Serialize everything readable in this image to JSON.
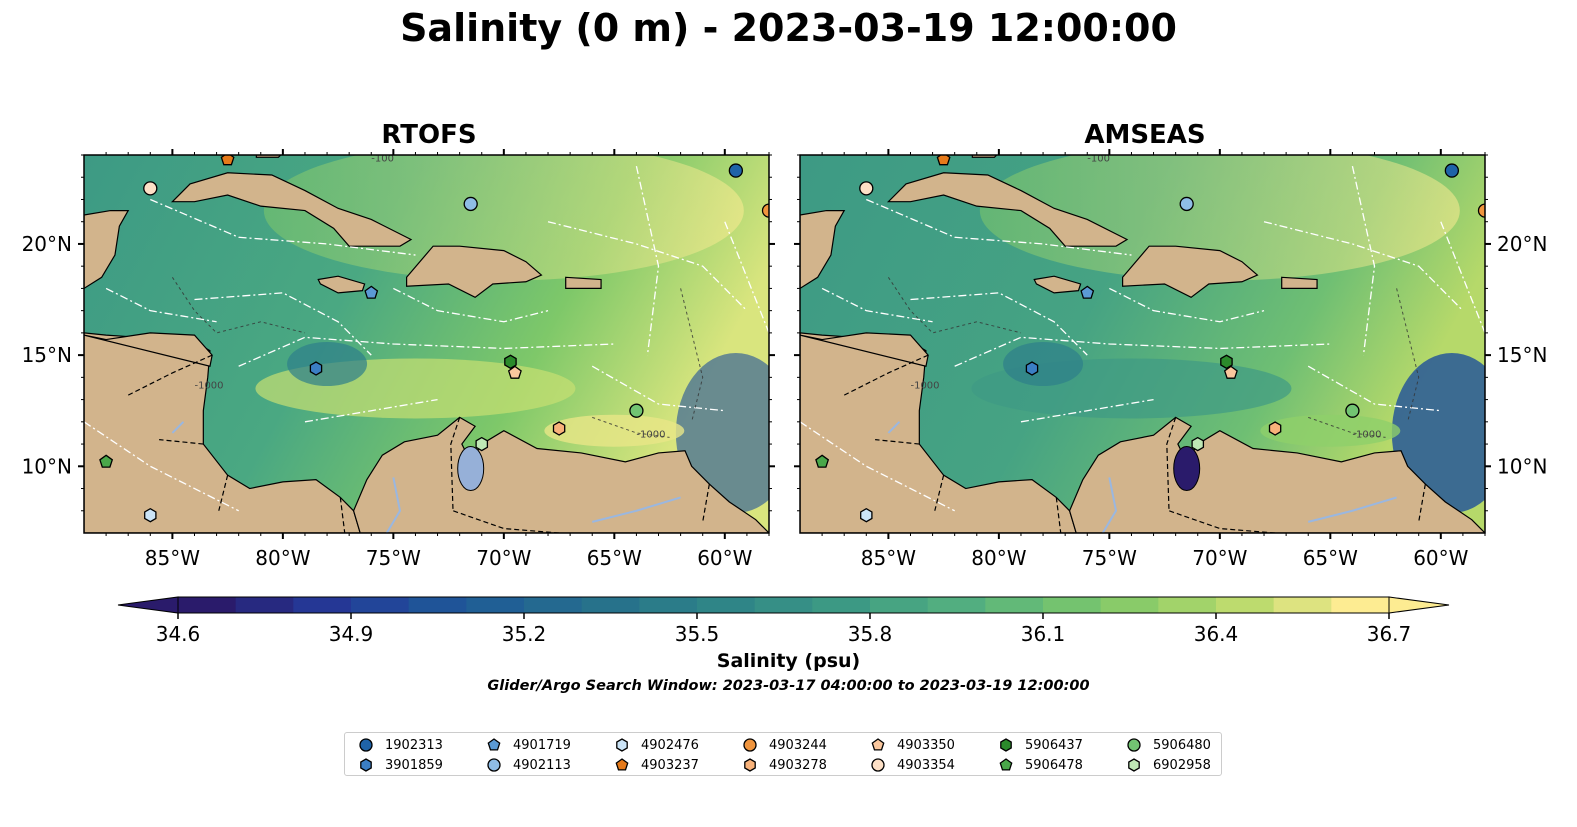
{
  "title": "Salinity (0 m) - 2023-03-19 12:00:00",
  "colors": {
    "land": "#d2b48c",
    "pacific_rtofs": "#2a1b6b",
    "pacific_amseas": "#9ab7e0",
    "lake": "#96b0d8",
    "boundary": "#000000",
    "eez_lines": "#ffffff",
    "colormap": [
      "#2a1b6b",
      "#243a9a",
      "#1e5a98",
      "#266f8c",
      "#2e8487",
      "#3d9a84",
      "#56b27f",
      "#7ec869",
      "#b6d96a",
      "#fdec92"
    ]
  },
  "chart_data": [
    {
      "type": "heatmap",
      "title": "RTOFS",
      "x_ticks": [
        "85°W",
        "80°W",
        "75°W",
        "70°W",
        "65°W",
        "60°W"
      ],
      "y_ticks": [
        "20°N",
        "15°N",
        "10°N"
      ],
      "xlim": [
        -89,
        -58
      ],
      "ylim": [
        7,
        24
      ],
      "contour_labels": [
        "-1000",
        "-100"
      ]
    },
    {
      "type": "heatmap",
      "title": "AMSEAS",
      "x_ticks": [
        "85°W",
        "80°W",
        "75°W",
        "70°W",
        "65°W",
        "60°W"
      ],
      "y_ticks": [
        "20°N",
        "15°N",
        "10°N"
      ],
      "xlim": [
        -89,
        -58
      ],
      "ylim": [
        7,
        24
      ],
      "contour_labels": [
        "-1000",
        "-100"
      ]
    }
  ],
  "colorbar": {
    "label": "Salinity (psu)",
    "min": 34.6,
    "max": 36.7,
    "ticks": [
      "34.6",
      "34.9",
      "35.2",
      "35.5",
      "35.8",
      "36.1",
      "36.4",
      "36.7"
    ],
    "extend": "both"
  },
  "search_window": "Glider/Argo Search Window: 2023-03-17 04:00:00 to 2023-03-19 12:00:00",
  "legend": {
    "columns": 7,
    "items": [
      {
        "id": "1902313",
        "marker": "circle",
        "color": "#1f63a8"
      },
      {
        "id": "3901859",
        "marker": "hexagon",
        "color": "#3b7ec4"
      },
      {
        "id": "4901719",
        "marker": "pentagon",
        "color": "#5b9ad4"
      },
      {
        "id": "4902113",
        "marker": "circle",
        "color": "#8fbde6"
      },
      {
        "id": "4902476",
        "marker": "hexagon",
        "color": "#cbe4f7"
      },
      {
        "id": "4903237",
        "marker": "pentagon",
        "color": "#e67a1a"
      },
      {
        "id": "4903244",
        "marker": "circle",
        "color": "#f0953e"
      },
      {
        "id": "4903278",
        "marker": "hexagon",
        "color": "#f8b27a"
      },
      {
        "id": "4903350",
        "marker": "pentagon",
        "color": "#fac79e"
      },
      {
        "id": "4903354",
        "marker": "circle",
        "color": "#fde0c6"
      },
      {
        "id": "5906437",
        "marker": "hexagon",
        "color": "#2b8a2b"
      },
      {
        "id": "5906478",
        "marker": "pentagon",
        "color": "#4aa84a"
      },
      {
        "id": "5906480",
        "marker": "circle",
        "color": "#72c472"
      },
      {
        "id": "6902958",
        "marker": "hexagon",
        "color": "#bfe8b5"
      }
    ]
  },
  "floats": [
    {
      "id": "1902313",
      "lon": -59.5,
      "lat": 23.3
    },
    {
      "id": "3901859",
      "lon": -78.5,
      "lat": 14.4
    },
    {
      "id": "4901719",
      "lon": -76.0,
      "lat": 17.8
    },
    {
      "id": "4902113",
      "lon": -71.5,
      "lat": 21.8
    },
    {
      "id": "4902476",
      "lon": -86.0,
      "lat": 7.8
    },
    {
      "id": "4903237",
      "lon": -82.5,
      "lat": 23.8
    },
    {
      "id": "4903244",
      "lon": -58.0,
      "lat": 21.5
    },
    {
      "id": "4903278",
      "lon": -67.5,
      "lat": 11.7
    },
    {
      "id": "4903350",
      "lon": -69.5,
      "lat": 14.2
    },
    {
      "id": "4903354",
      "lon": -86.0,
      "lat": 22.5
    },
    {
      "id": "5906437",
      "lon": -69.7,
      "lat": 14.7
    },
    {
      "id": "5906478",
      "lon": -88.0,
      "lat": 10.2
    },
    {
      "id": "5906480",
      "lon": -64.0,
      "lat": 12.5
    },
    {
      "id": "6902958",
      "lon": -71.0,
      "lat": 11.0
    }
  ]
}
